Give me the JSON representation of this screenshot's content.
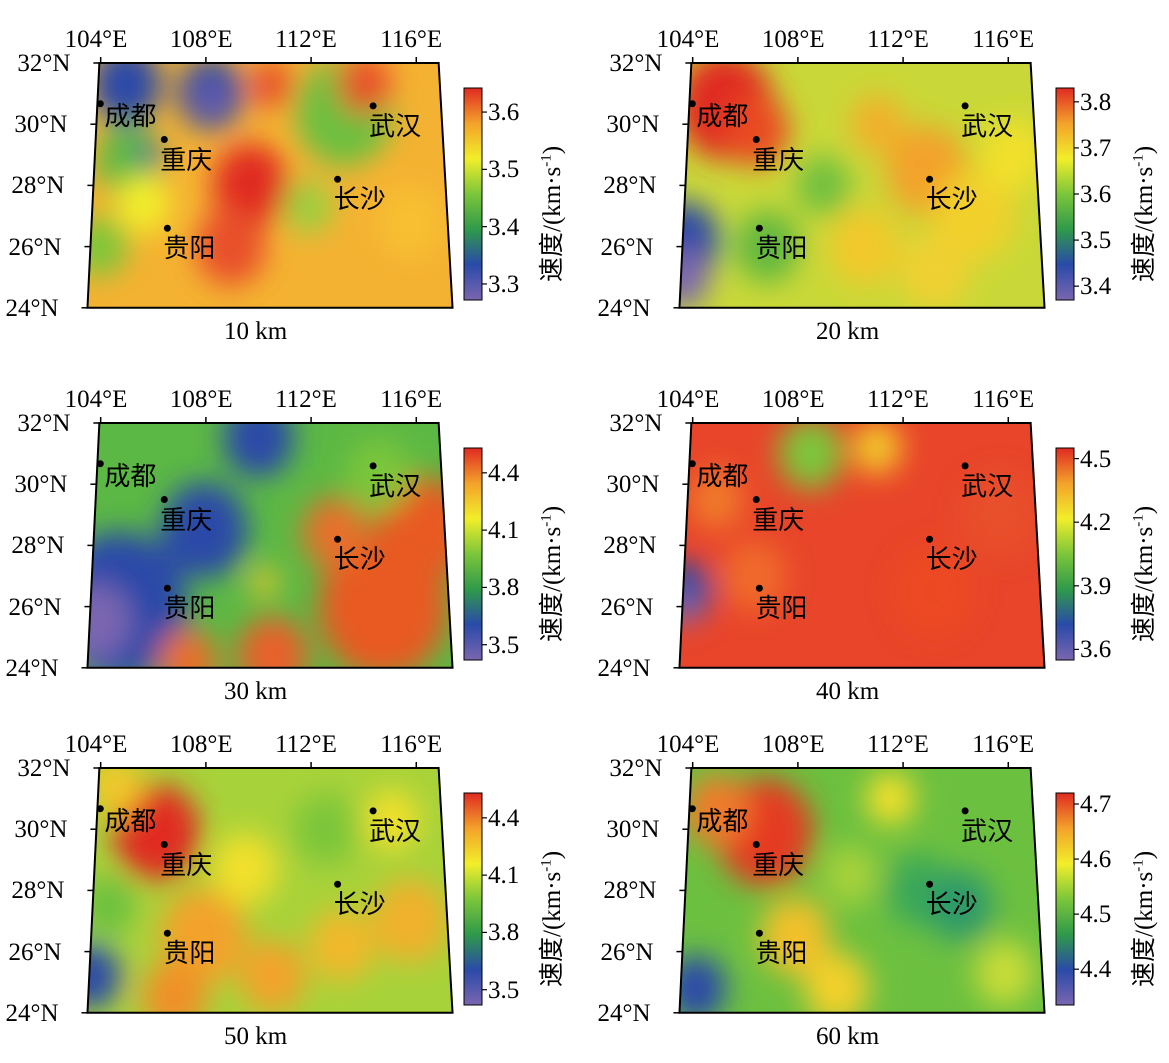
{
  "figure": {
    "lon_ticks": [
      "104°E",
      "108°E",
      "112°E",
      "116°E"
    ],
    "lat_ticks": [
      "32°N",
      "30°N",
      "28°N",
      "26°N",
      "24°N"
    ],
    "cities": [
      {
        "name": "成都",
        "lon": 104.06,
        "lat": 30.67
      },
      {
        "name": "重庆",
        "lon": 106.5,
        "lat": 29.5
      },
      {
        "name": "贵阳",
        "lon": 106.7,
        "lat": 26.6
      },
      {
        "name": "武汉",
        "lon": 114.3,
        "lat": 30.6
      },
      {
        "name": "长沙",
        "lon": 112.9,
        "lat": 28.2
      }
    ],
    "colorbar_title": "速度/(km·s",
    "colorbar_title_sup": "-1",
    "colorbar_title_end": ")",
    "colormap": [
      "#7a66b0",
      "#2a4aa8",
      "#2f9a4a",
      "#7cc63a",
      "#f2ee2a",
      "#f3a22a",
      "#e02a22"
    ],
    "panels": [
      {
        "depth": "10 km",
        "vmin": 3.272,
        "vmax": 3.642,
        "ticks": [
          "3.3",
          "3.4",
          "3.5",
          "3.6"
        ]
      },
      {
        "depth": "20 km",
        "vmin": 3.37,
        "vmax": 3.83,
        "ticks": [
          "3.4",
          "3.5",
          "3.6",
          "3.7",
          "3.8"
        ]
      },
      {
        "depth": "30 km",
        "vmin": 3.42,
        "vmax": 4.53,
        "ticks": [
          "3.5",
          "3.8",
          "4.1",
          "4.4"
        ]
      },
      {
        "depth": "40 km",
        "vmin": 3.55,
        "vmax": 4.55,
        "ticks": [
          "3.6",
          "3.9",
          "4.2",
          "4.5"
        ]
      },
      {
        "depth": "50 km",
        "vmin": 3.42,
        "vmax": 4.53,
        "ticks": [
          "3.5",
          "3.8",
          "4.1",
          "4.4"
        ]
      },
      {
        "depth": "60 km",
        "vmin": 4.335,
        "vmax": 4.72,
        "ticks": [
          "4.4",
          "4.5",
          "4.6",
          "4.7"
        ]
      }
    ]
  }
}
